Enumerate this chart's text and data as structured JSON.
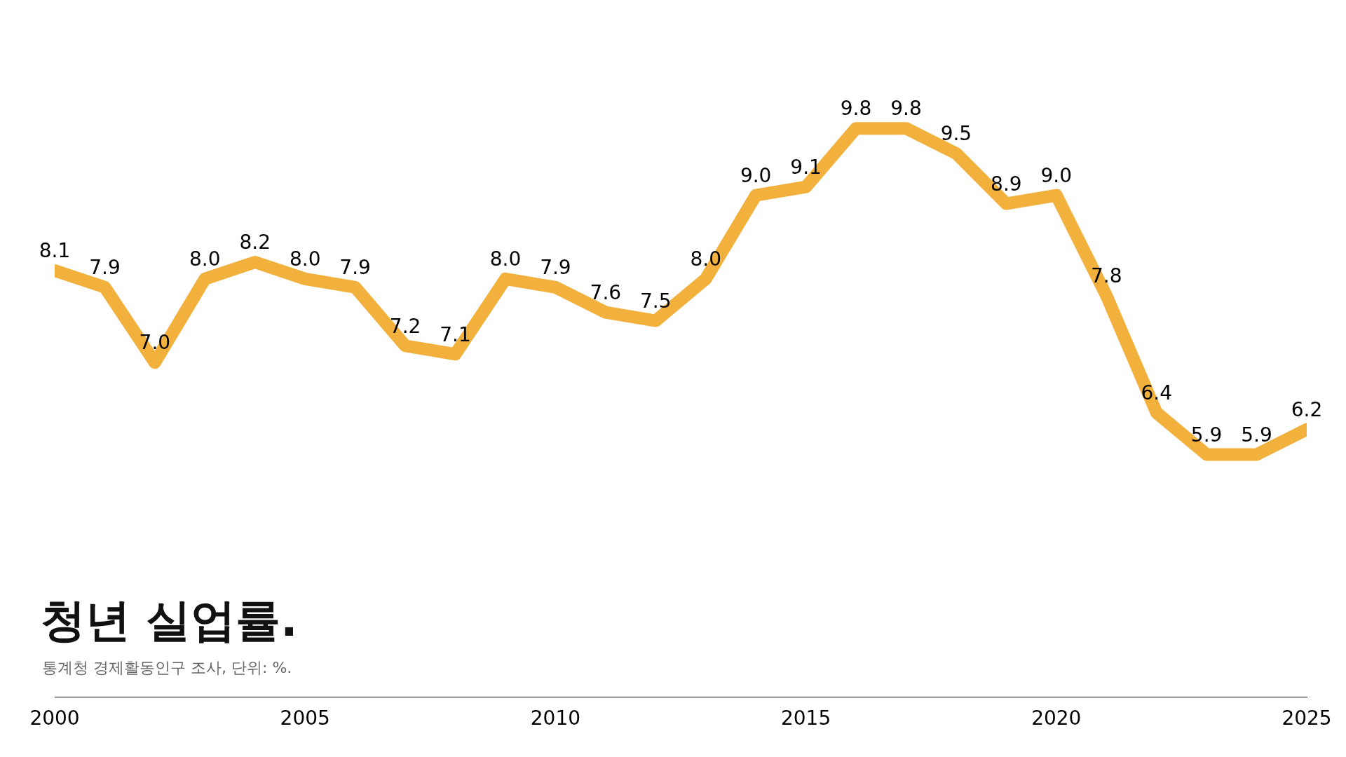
{
  "chart_data": {
    "type": "line",
    "title": "청년 실업률.",
    "subtitle": "통계청 경제활동인구 조사, 단위: %.",
    "x": [
      2000,
      2001,
      2002,
      2003,
      2004,
      2005,
      2006,
      2007,
      2008,
      2009,
      2010,
      2011,
      2012,
      2013,
      2014,
      2015,
      2016,
      2017,
      2018,
      2019,
      2020,
      2021,
      2022,
      2023,
      2024,
      2025
    ],
    "values": [
      8.1,
      7.9,
      7.0,
      8.0,
      8.2,
      8.0,
      7.9,
      7.2,
      7.1,
      8.0,
      7.9,
      7.6,
      7.5,
      8.0,
      9.0,
      9.1,
      9.8,
      9.8,
      9.5,
      8.9,
      9.0,
      7.8,
      6.4,
      5.9,
      5.9,
      6.2
    ],
    "value_labels": [
      "8.1",
      "7.9",
      "7.0",
      "8.0",
      "8.2",
      "8.0",
      "7.9",
      "7.2",
      "7.1",
      "8.0",
      "7.9",
      "7.6",
      "7.5",
      "8.0",
      "9.0",
      "9.1",
      "9.8",
      "9.8",
      "9.5",
      "8.9",
      "9.0",
      "7.8",
      "6.4",
      "5.9",
      "5.9",
      "6.2"
    ],
    "color": "#f2b03c",
    "xlim": [
      2000,
      2025
    ],
    "xticks": [
      2000,
      2005,
      2010,
      2015,
      2020,
      2025
    ],
    "tick_labels": "x",
    "grid": false,
    "marker": "none"
  }
}
